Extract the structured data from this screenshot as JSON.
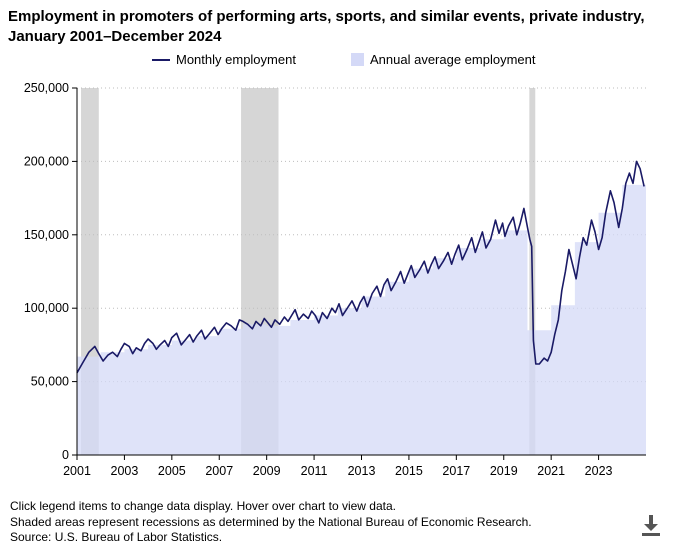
{
  "title_lines": [
    "Employment in promoters of performing arts, sports, and similar events, private industry,",
    "January 2001–December 2024"
  ],
  "legend": {
    "monthly": "Monthly employment",
    "annual": "Annual average employment"
  },
  "colors": {
    "line": "#1a1a66",
    "area": "#d4d9f7",
    "recession": "#d6d6d6",
    "grid": "#bdbdbd"
  },
  "footnotes": [
    "Click legend items to change data display. Hover over chart to view data.",
    "Shaded areas represent recessions as determined by the National Bureau of Economic Research.",
    "Source: U.S. Bureau of Labor Statistics."
  ],
  "download_icon": "download-icon",
  "chart_data": {
    "type": "line",
    "title": "Employment in promoters of performing arts, sports, and similar events, private industry, January 2001–December 2024",
    "xlabel": "",
    "ylabel": "",
    "ylim": [
      0,
      250000
    ],
    "xlim": [
      2001.0,
      2025.0
    ],
    "y_ticks": [
      0,
      50000,
      100000,
      150000,
      200000,
      250000
    ],
    "y_tick_labels": [
      "0",
      "50,000",
      "100,000",
      "150,000",
      "200,000",
      "250,000"
    ],
    "x_ticks": [
      2001,
      2003,
      2005,
      2007,
      2009,
      2011,
      2013,
      2015,
      2017,
      2019,
      2021,
      2023
    ],
    "x_tick_labels": [
      "2001",
      "2003",
      "2005",
      "2007",
      "2009",
      "2011",
      "2013",
      "2015",
      "2017",
      "2019",
      "2021",
      "2023"
    ],
    "grid": "horizontal dotted",
    "legend_position": "top",
    "recessions": [
      {
        "start": 2001.17,
        "end": 2001.92
      },
      {
        "start": 2007.92,
        "end": 2009.5
      },
      {
        "start": 2020.08,
        "end": 2020.33
      }
    ],
    "annual_average": {
      "name": "Annual average employment",
      "years": [
        2001,
        2002,
        2003,
        2004,
        2005,
        2006,
        2007,
        2008,
        2009,
        2010,
        2011,
        2012,
        2013,
        2014,
        2015,
        2016,
        2017,
        2018,
        2019,
        2020,
        2021,
        2022,
        2023,
        2024
      ],
      "values": [
        67000,
        70000,
        72000,
        75000,
        78000,
        81000,
        86000,
        89000,
        88000,
        92000,
        95000,
        100000,
        108000,
        118000,
        127000,
        134000,
        141000,
        147000,
        153000,
        85000,
        102000,
        145000,
        165000,
        184000
      ]
    },
    "monthly": {
      "name": "Monthly employment",
      "points": [
        [
          2001.0,
          56000
        ],
        [
          2001.25,
          63000
        ],
        [
          2001.5,
          70000
        ],
        [
          2001.75,
          74000
        ],
        [
          2001.92,
          69000
        ],
        [
          2002.1,
          64000
        ],
        [
          2002.3,
          68000
        ],
        [
          2002.5,
          70000
        ],
        [
          2002.7,
          67000
        ],
        [
          2002.85,
          72000
        ],
        [
          2003.0,
          76000
        ],
        [
          2003.2,
          74000
        ],
        [
          2003.35,
          69000
        ],
        [
          2003.5,
          73000
        ],
        [
          2003.7,
          71000
        ],
        [
          2003.85,
          76000
        ],
        [
          2004.0,
          79000
        ],
        [
          2004.2,
          76000
        ],
        [
          2004.35,
          72000
        ],
        [
          2004.5,
          75000
        ],
        [
          2004.7,
          78000
        ],
        [
          2004.85,
          74000
        ],
        [
          2005.0,
          80000
        ],
        [
          2005.2,
          83000
        ],
        [
          2005.4,
          75000
        ],
        [
          2005.55,
          78000
        ],
        [
          2005.75,
          82000
        ],
        [
          2005.9,
          77000
        ],
        [
          2006.05,
          81000
        ],
        [
          2006.25,
          85000
        ],
        [
          2006.4,
          79000
        ],
        [
          2006.6,
          83000
        ],
        [
          2006.8,
          87000
        ],
        [
          2006.95,
          82000
        ],
        [
          2007.1,
          86000
        ],
        [
          2007.3,
          90000
        ],
        [
          2007.5,
          88000
        ],
        [
          2007.7,
          85000
        ],
        [
          2007.85,
          92000
        ],
        [
          2008.0,
          91000
        ],
        [
          2008.2,
          89000
        ],
        [
          2008.4,
          86000
        ],
        [
          2008.55,
          91000
        ],
        [
          2008.75,
          88000
        ],
        [
          2008.9,
          93000
        ],
        [
          2009.05,
          90000
        ],
        [
          2009.2,
          87000
        ],
        [
          2009.35,
          92000
        ],
        [
          2009.55,
          89000
        ],
        [
          2009.75,
          94000
        ],
        [
          2009.9,
          91000
        ],
        [
          2010.05,
          95000
        ],
        [
          2010.2,
          99000
        ],
        [
          2010.35,
          92000
        ],
        [
          2010.55,
          96000
        ],
        [
          2010.75,
          93000
        ],
        [
          2010.9,
          98000
        ],
        [
          2011.05,
          95000
        ],
        [
          2011.2,
          90000
        ],
        [
          2011.35,
          97000
        ],
        [
          2011.55,
          93000
        ],
        [
          2011.75,
          100000
        ],
        [
          2011.9,
          97000
        ],
        [
          2012.05,
          103000
        ],
        [
          2012.2,
          95000
        ],
        [
          2012.4,
          100000
        ],
        [
          2012.6,
          105000
        ],
        [
          2012.8,
          98000
        ],
        [
          2012.95,
          104000
        ],
        [
          2013.1,
          108000
        ],
        [
          2013.25,
          101000
        ],
        [
          2013.45,
          110000
        ],
        [
          2013.65,
          115000
        ],
        [
          2013.8,
          108000
        ],
        [
          2013.95,
          116000
        ],
        [
          2014.1,
          120000
        ],
        [
          2014.25,
          112000
        ],
        [
          2014.45,
          118000
        ],
        [
          2014.65,
          125000
        ],
        [
          2014.8,
          117000
        ],
        [
          2014.95,
          123000
        ],
        [
          2015.1,
          129000
        ],
        [
          2015.25,
          121000
        ],
        [
          2015.45,
          126000
        ],
        [
          2015.65,
          132000
        ],
        [
          2015.8,
          124000
        ],
        [
          2015.95,
          130000
        ],
        [
          2016.1,
          135000
        ],
        [
          2016.25,
          127000
        ],
        [
          2016.45,
          132000
        ],
        [
          2016.65,
          138000
        ],
        [
          2016.8,
          130000
        ],
        [
          2016.95,
          137000
        ],
        [
          2017.1,
          143000
        ],
        [
          2017.25,
          133000
        ],
        [
          2017.45,
          140000
        ],
        [
          2017.65,
          148000
        ],
        [
          2017.8,
          138000
        ],
        [
          2017.95,
          145000
        ],
        [
          2018.1,
          152000
        ],
        [
          2018.25,
          141000
        ],
        [
          2018.45,
          147000
        ],
        [
          2018.65,
          160000
        ],
        [
          2018.8,
          151000
        ],
        [
          2018.95,
          158000
        ],
        [
          2019.05,
          149000
        ],
        [
          2019.2,
          156000
        ],
        [
          2019.4,
          162000
        ],
        [
          2019.55,
          150000
        ],
        [
          2019.7,
          158000
        ],
        [
          2019.85,
          168000
        ],
        [
          2020.0,
          155000
        ],
        [
          2020.1,
          147000
        ],
        [
          2020.18,
          142000
        ],
        [
          2020.25,
          78000
        ],
        [
          2020.35,
          62000
        ],
        [
          2020.5,
          62000
        ],
        [
          2020.7,
          66000
        ],
        [
          2020.85,
          64000
        ],
        [
          2021.0,
          70000
        ],
        [
          2021.15,
          82000
        ],
        [
          2021.3,
          92000
        ],
        [
          2021.45,
          112000
        ],
        [
          2021.6,
          125000
        ],
        [
          2021.75,
          140000
        ],
        [
          2021.9,
          130000
        ],
        [
          2022.05,
          120000
        ],
        [
          2022.2,
          135000
        ],
        [
          2022.35,
          148000
        ],
        [
          2022.5,
          143000
        ],
        [
          2022.7,
          160000
        ],
        [
          2022.85,
          152000
        ],
        [
          2023.0,
          140000
        ],
        [
          2023.15,
          148000
        ],
        [
          2023.3,
          165000
        ],
        [
          2023.5,
          180000
        ],
        [
          2023.65,
          172000
        ],
        [
          2023.85,
          155000
        ],
        [
          2024.0,
          168000
        ],
        [
          2024.15,
          185000
        ],
        [
          2024.3,
          192000
        ],
        [
          2024.45,
          185000
        ],
        [
          2024.6,
          200000
        ],
        [
          2024.75,
          195000
        ],
        [
          2024.92,
          183000
        ]
      ]
    }
  }
}
